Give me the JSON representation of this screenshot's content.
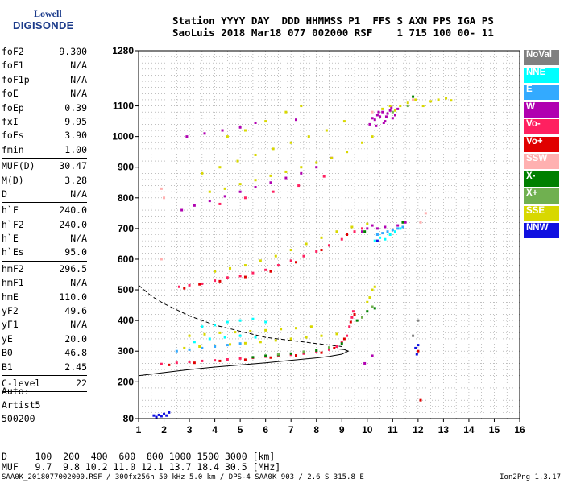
{
  "logo": {
    "line1": "Lowell",
    "line2": "DIGISONDE"
  },
  "header": {
    "line1": "Station YYYY DAY  DDD HHMMSS P1  FFS S AXN PPS IGA PS",
    "line2": "SaoLuis 2018 Mar18 077 002000 RSF    1 715 100 00- 11"
  },
  "params": {
    "group1": [
      {
        "k": "foF2",
        "v": "9.300"
      },
      {
        "k": "foF1",
        "v": "N/A"
      },
      {
        "k": "foF1p",
        "v": "N/A"
      },
      {
        "k": "foE",
        "v": "N/A"
      },
      {
        "k": "foEp",
        "v": "0.39"
      },
      {
        "k": "fxI",
        "v": "9.95"
      },
      {
        "k": "foEs",
        "v": "3.90"
      },
      {
        "k": "fmin",
        "v": "1.00"
      }
    ],
    "group2": [
      {
        "k": "MUF(D)",
        "v": "30.47"
      },
      {
        "k": "M(D)",
        "v": "3.28"
      },
      {
        "k": "D",
        "v": "N/A"
      }
    ],
    "group3": [
      {
        "k": "h`F",
        "v": "240.0"
      },
      {
        "k": "h`F2",
        "v": "240.0"
      },
      {
        "k": "h`E",
        "v": "N/A"
      },
      {
        "k": "h`Es",
        "v": "95.0"
      }
    ],
    "group4": [
      {
        "k": "hmF2",
        "v": "296.5"
      },
      {
        "k": "hmF1",
        "v": "N/A"
      },
      {
        "k": "hmE",
        "v": "110.0"
      },
      {
        "k": "yF2",
        "v": "49.6"
      },
      {
        "k": "yF1",
        "v": "N/A"
      },
      {
        "k": "yE",
        "v": "20.0"
      },
      {
        "k": "B0",
        "v": "46.8"
      },
      {
        "k": "B1",
        "v": "2.45"
      }
    ],
    "group5": [
      {
        "k": "C-level",
        "v": "22"
      }
    ]
  },
  "auto": {
    "line1": "Auto:",
    "line2": "Artist5",
    "line3": "500200"
  },
  "legend": [
    {
      "label": "NoVal",
      "color": "#808080"
    },
    {
      "label": "NNE",
      "color": "#00ffff"
    },
    {
      "label": "E",
      "color": "#33aaff"
    },
    {
      "label": "W",
      "color": "#b000b0"
    },
    {
      "label": "Vo-",
      "color": "#ff2060"
    },
    {
      "label": "Vo+",
      "color": "#e00000"
    },
    {
      "label": "SSW",
      "color": "#ffb0b0"
    },
    {
      "label": "X-",
      "color": "#008000"
    },
    {
      "label": "X+",
      "color": "#70b050"
    },
    {
      "label": "SSE",
      "color": "#d8d800"
    },
    {
      "label": "NNW",
      "color": "#1010e0"
    }
  ],
  "dmuf": {
    "line1": "D     100  200  400  600  800 1000 1500 3000 [km]",
    "line2": "MUF   9.7  9.8 10.2 11.0 12.1 13.7 18.4 30.5 [MHz]"
  },
  "footer": "SAA0K_2018077002000.RSF / 300fx256h 50 kHz 5.0 km / DPS-4 SAA0K 903 / 2.6 S 315.8 E",
  "version": "Ion2Png 1.3.17",
  "chart_data": {
    "type": "scatter",
    "title": "",
    "xlabel": "",
    "ylabel": "",
    "xlim": [
      1,
      16
    ],
    "ylim": [
      80,
      1280
    ],
    "x_ticks": [
      1,
      2,
      3,
      4,
      5,
      6,
      7,
      8,
      9,
      10,
      11,
      12,
      13,
      14,
      15,
      16
    ],
    "y_ticks": [
      80,
      200,
      300,
      400,
      500,
      600,
      700,
      800,
      900,
      1000,
      1100,
      1280
    ],
    "grid": "dotted",
    "series": [
      {
        "name": "W",
        "color": "#b000b0",
        "points": [
          [
            2.7,
            760
          ],
          [
            3.2,
            775
          ],
          [
            3.8,
            790
          ],
          [
            4.4,
            805
          ],
          [
            5.0,
            820
          ],
          [
            5.6,
            835
          ],
          [
            6.2,
            850
          ],
          [
            6.8,
            865
          ],
          [
            7.4,
            880
          ],
          [
            8.0,
            900
          ],
          [
            8.6,
            930
          ],
          [
            2.9,
            1000
          ],
          [
            3.6,
            1010
          ],
          [
            4.3,
            1020
          ],
          [
            5.0,
            1030
          ],
          [
            5.6,
            1045
          ],
          [
            7.2,
            1055
          ],
          [
            10.1,
            1040
          ],
          [
            10.2,
            1060
          ],
          [
            10.3,
            1055
          ],
          [
            10.4,
            1070
          ],
          [
            10.5,
            1065
          ],
          [
            10.6,
            1080
          ],
          [
            10.7,
            1050
          ],
          [
            10.8,
            1075
          ],
          [
            10.9,
            1085
          ],
          [
            11.0,
            1060
          ],
          [
            11.1,
            1070
          ],
          [
            11.2,
            1090
          ],
          [
            10.35,
            1035
          ],
          [
            10.65,
            1045
          ],
          [
            10.95,
            1095
          ],
          [
            10.45,
            1080
          ],
          [
            10.75,
            1065
          ],
          [
            9.8,
            690
          ],
          [
            10.0,
            700
          ],
          [
            10.2,
            710
          ],
          [
            10.4,
            700
          ],
          [
            10.7,
            705
          ],
          [
            11.2,
            710
          ],
          [
            11.5,
            720
          ],
          [
            9.9,
            260
          ],
          [
            10.2,
            285
          ]
        ]
      },
      {
        "name": "Vo-",
        "color": "#ff2060",
        "points": [
          [
            2.6,
            510
          ],
          [
            3.0,
            515
          ],
          [
            3.5,
            520
          ],
          [
            4.0,
            530
          ],
          [
            4.5,
            540
          ],
          [
            5.0,
            545
          ],
          [
            5.5,
            555
          ],
          [
            6.0,
            565
          ],
          [
            6.5,
            580
          ],
          [
            7.0,
            595
          ],
          [
            7.5,
            610
          ],
          [
            8.0,
            625
          ],
          [
            8.5,
            645
          ],
          [
            9.0,
            665
          ],
          [
            9.5,
            690
          ],
          [
            9.8,
            700
          ],
          [
            1.9,
            258
          ],
          [
            2.5,
            262
          ],
          [
            3.0,
            265
          ],
          [
            3.5,
            268
          ],
          [
            4.0,
            270
          ],
          [
            4.5,
            273
          ],
          [
            5.0,
            276
          ],
          [
            5.5,
            278
          ],
          [
            6.0,
            282
          ],
          [
            6.5,
            285
          ],
          [
            7.0,
            288
          ],
          [
            7.5,
            292
          ],
          [
            8.0,
            298
          ],
          [
            8.5,
            305
          ],
          [
            8.8,
            315
          ],
          [
            9.0,
            330
          ],
          [
            9.2,
            350
          ],
          [
            9.3,
            380
          ],
          [
            9.4,
            410
          ],
          [
            9.45,
            430
          ],
          [
            4.2,
            780
          ],
          [
            5.2,
            800
          ],
          [
            6.3,
            820
          ],
          [
            7.3,
            840
          ],
          [
            8.3,
            870
          ]
        ]
      },
      {
        "name": "Vo+",
        "color": "#e00000",
        "points": [
          [
            2.8,
            505
          ],
          [
            3.4,
            518
          ],
          [
            4.2,
            528
          ],
          [
            5.2,
            542
          ],
          [
            6.2,
            560
          ],
          [
            7.2,
            590
          ],
          [
            8.2,
            630
          ],
          [
            9.2,
            680
          ],
          [
            2.2,
            255
          ],
          [
            3.2,
            262
          ],
          [
            4.2,
            268
          ],
          [
            5.2,
            272
          ],
          [
            6.2,
            279
          ],
          [
            7.2,
            286
          ],
          [
            8.2,
            295
          ],
          [
            8.7,
            310
          ],
          [
            9.1,
            340
          ],
          [
            9.35,
            395
          ],
          [
            9.5,
            420
          ],
          [
            12.0,
            300
          ],
          [
            12.1,
            140
          ]
        ]
      },
      {
        "name": "X-",
        "color": "#008000",
        "points": [
          [
            5.5,
            280
          ],
          [
            6.0,
            285
          ],
          [
            6.5,
            288
          ],
          [
            7.0,
            292
          ],
          [
            7.5,
            296
          ],
          [
            8.0,
            302
          ],
          [
            8.5,
            310
          ],
          [
            9.0,
            325
          ],
          [
            9.6,
            400
          ],
          [
            10.0,
            430
          ],
          [
            10.3,
            440
          ],
          [
            9.9,
            690
          ],
          [
            11.4,
            720
          ],
          [
            11.8,
            1130
          ]
        ]
      },
      {
        "name": "X+",
        "color": "#70b050",
        "points": [
          [
            6.5,
            290
          ],
          [
            7.5,
            298
          ],
          [
            8.5,
            312
          ],
          [
            9.8,
            410
          ],
          [
            10.2,
            445
          ],
          [
            11.0,
            1080
          ],
          [
            11.6,
            1100
          ]
        ]
      },
      {
        "name": "SSE",
        "color": "#d8d800",
        "points": [
          [
            3.8,
            820
          ],
          [
            4.4,
            830
          ],
          [
            5.0,
            845
          ],
          [
            5.6,
            858
          ],
          [
            6.2,
            872
          ],
          [
            6.8,
            885
          ],
          [
            7.4,
            900
          ],
          [
            8.0,
            915
          ],
          [
            8.6,
            930
          ],
          [
            9.2,
            950
          ],
          [
            9.8,
            980
          ],
          [
            10.2,
            1000
          ],
          [
            3.5,
            880
          ],
          [
            4.2,
            900
          ],
          [
            4.9,
            920
          ],
          [
            5.6,
            940
          ],
          [
            6.3,
            960
          ],
          [
            7.0,
            980
          ],
          [
            7.7,
            1000
          ],
          [
            8.4,
            1020
          ],
          [
            9.1,
            1050
          ],
          [
            4.5,
            1000
          ],
          [
            5.2,
            1020
          ],
          [
            6.0,
            1050
          ],
          [
            6.8,
            1080
          ],
          [
            7.4,
            1100
          ],
          [
            4.0,
            560
          ],
          [
            4.6,
            570
          ],
          [
            5.2,
            580
          ],
          [
            5.8,
            595
          ],
          [
            6.4,
            610
          ],
          [
            7.0,
            630
          ],
          [
            7.6,
            650
          ],
          [
            8.2,
            670
          ],
          [
            8.8,
            690
          ],
          [
            9.4,
            705
          ],
          [
            10.0,
            715
          ],
          [
            3.0,
            350
          ],
          [
            3.6,
            355
          ],
          [
            4.2,
            360
          ],
          [
            4.8,
            362
          ],
          [
            5.4,
            365
          ],
          [
            6.0,
            368
          ],
          [
            6.6,
            372
          ],
          [
            7.2,
            375
          ],
          [
            7.8,
            380
          ],
          [
            2.8,
            310
          ],
          [
            3.4,
            315
          ],
          [
            4.0,
            318
          ],
          [
            4.6,
            322
          ],
          [
            5.2,
            326
          ],
          [
            5.8,
            330
          ],
          [
            6.4,
            335
          ],
          [
            7.0,
            340
          ],
          [
            7.6,
            345
          ],
          [
            8.2,
            350
          ],
          [
            8.8,
            356
          ],
          [
            10.0,
            460
          ],
          [
            10.1,
            475
          ],
          [
            10.2,
            500
          ],
          [
            10.3,
            510
          ],
          [
            11.3,
            1100
          ],
          [
            11.6,
            1110
          ],
          [
            11.9,
            1120
          ],
          [
            12.2,
            1100
          ],
          [
            12.5,
            1115
          ],
          [
            12.8,
            1120
          ],
          [
            13.1,
            1125
          ],
          [
            13.3,
            1118
          ],
          [
            10.6,
            1090
          ],
          [
            10.9,
            1100
          ],
          [
            11.1,
            1085
          ]
        ]
      },
      {
        "name": "NNE",
        "color": "#00ffff",
        "points": [
          [
            3.5,
            380
          ],
          [
            4.0,
            385
          ],
          [
            4.5,
            395
          ],
          [
            5.0,
            400
          ],
          [
            5.5,
            405
          ],
          [
            6.0,
            395
          ],
          [
            3.2,
            330
          ],
          [
            3.8,
            340
          ],
          [
            4.4,
            345
          ],
          [
            5.0,
            350
          ],
          [
            5.6,
            345
          ],
          [
            10.3,
            660
          ],
          [
            10.5,
            670
          ],
          [
            10.7,
            665
          ],
          [
            10.9,
            680
          ],
          [
            11.1,
            690
          ],
          [
            11.3,
            700
          ]
        ]
      },
      {
        "name": "E",
        "color": "#33aaff",
        "points": [
          [
            2.5,
            300
          ],
          [
            3.0,
            305
          ],
          [
            3.5,
            310
          ],
          [
            4.0,
            315
          ],
          [
            4.5,
            320
          ],
          [
            5.0,
            325
          ],
          [
            10.4,
            680
          ],
          [
            10.6,
            685
          ],
          [
            10.8,
            690
          ],
          [
            11.0,
            695
          ],
          [
            11.2,
            700
          ],
          [
            11.4,
            705
          ]
        ]
      },
      {
        "name": "SSW",
        "color": "#ffb0b0",
        "points": [
          [
            1.9,
            830
          ],
          [
            1.9,
            600
          ],
          [
            2.0,
            800
          ],
          [
            10.2,
            1080
          ],
          [
            11.8,
            1120
          ],
          [
            12.1,
            720
          ],
          [
            12.3,
            750
          ]
        ]
      },
      {
        "name": "NNW",
        "color": "#1010e0",
        "points": [
          [
            1.6,
            90
          ],
          [
            1.7,
            85
          ],
          [
            1.8,
            92
          ],
          [
            1.9,
            88
          ],
          [
            2.0,
            95
          ],
          [
            2.1,
            90
          ],
          [
            2.2,
            100
          ],
          [
            11.9,
            310
          ],
          [
            11.95,
            290
          ],
          [
            12.0,
            320
          ],
          [
            10.4,
            660
          ]
        ]
      },
      {
        "name": "NoVal",
        "color": "#808080",
        "points": [
          [
            11.8,
            350
          ],
          [
            12.0,
            400
          ]
        ]
      }
    ],
    "curves": [
      {
        "style": "solid",
        "x": [
          1,
          2,
          3,
          4,
          5,
          6,
          7,
          8,
          8.5,
          9,
          9.25,
          9.1,
          8.8
        ],
        "y": [
          220,
          230,
          240,
          248,
          255,
          262,
          270,
          278,
          283,
          290,
          300,
          305,
          308
        ]
      },
      {
        "style": "dashed",
        "x": [
          1,
          1.5,
          2,
          3,
          4,
          5,
          6,
          7,
          8,
          9
        ],
        "y": [
          515,
          480,
          455,
          415,
          385,
          365,
          345,
          335,
          325,
          315
        ]
      }
    ]
  }
}
